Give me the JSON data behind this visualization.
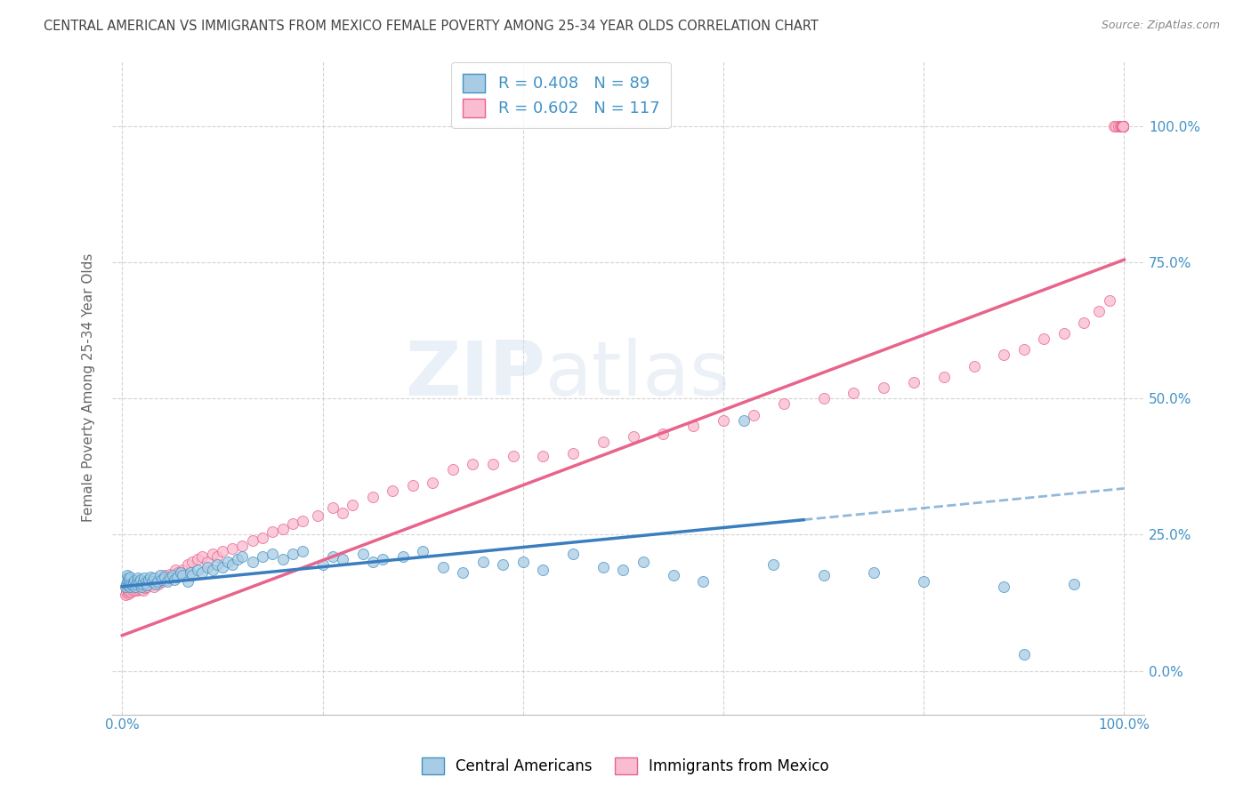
{
  "title": "CENTRAL AMERICAN VS IMMIGRANTS FROM MEXICO FEMALE POVERTY AMONG 25-34 YEAR OLDS CORRELATION CHART",
  "source": "Source: ZipAtlas.com",
  "ylabel": "Female Poverty Among 25-34 Year Olds",
  "watermark_top": "ZIP",
  "watermark_bottom": "atlas",
  "legend_line1": "R = 0.408   N = 89",
  "legend_line2": "R = 0.602   N = 117",
  "color_blue_fill": "#a8cce4",
  "color_blue_edge": "#4292c6",
  "color_pink_fill": "#f9bcd0",
  "color_pink_edge": "#e8648a",
  "color_blue_line": "#3a7ebf",
  "color_pink_line": "#e8648a",
  "background_color": "#ffffff",
  "grid_color": "#c8c8c8",
  "label_color": "#4292c6",
  "title_color": "#444444",
  "source_color": "#888888",
  "ylabel_color": "#666666",
  "blue_x": [
    0.003,
    0.004,
    0.005,
    0.005,
    0.006,
    0.006,
    0.007,
    0.007,
    0.008,
    0.008,
    0.009,
    0.01,
    0.011,
    0.012,
    0.013,
    0.014,
    0.015,
    0.016,
    0.017,
    0.018,
    0.019,
    0.02,
    0.021,
    0.022,
    0.024,
    0.025,
    0.026,
    0.028,
    0.03,
    0.032,
    0.033,
    0.035,
    0.038,
    0.04,
    0.042,
    0.045,
    0.048,
    0.05,
    0.052,
    0.055,
    0.058,
    0.06,
    0.065,
    0.068,
    0.07,
    0.075,
    0.08,
    0.085,
    0.09,
    0.095,
    0.1,
    0.105,
    0.11,
    0.115,
    0.12,
    0.13,
    0.14,
    0.15,
    0.16,
    0.17,
    0.18,
    0.2,
    0.21,
    0.22,
    0.24,
    0.25,
    0.26,
    0.28,
    0.3,
    0.32,
    0.34,
    0.36,
    0.38,
    0.4,
    0.42,
    0.45,
    0.48,
    0.5,
    0.52,
    0.55,
    0.58,
    0.62,
    0.65,
    0.7,
    0.75,
    0.8,
    0.88,
    0.9,
    0.95
  ],
  "blue_y": [
    0.155,
    0.16,
    0.165,
    0.175,
    0.158,
    0.17,
    0.162,
    0.168,
    0.155,
    0.172,
    0.16,
    0.158,
    0.163,
    0.166,
    0.155,
    0.16,
    0.165,
    0.17,
    0.162,
    0.168,
    0.155,
    0.16,
    0.165,
    0.17,
    0.162,
    0.158,
    0.168,
    0.172,
    0.165,
    0.17,
    0.16,
    0.165,
    0.175,
    0.168,
    0.172,
    0.165,
    0.17,
    0.175,
    0.168,
    0.172,
    0.18,
    0.175,
    0.165,
    0.18,
    0.175,
    0.185,
    0.18,
    0.19,
    0.185,
    0.195,
    0.19,
    0.2,
    0.195,
    0.205,
    0.21,
    0.2,
    0.21,
    0.215,
    0.205,
    0.215,
    0.22,
    0.195,
    0.21,
    0.205,
    0.215,
    0.2,
    0.205,
    0.21,
    0.22,
    0.19,
    0.18,
    0.2,
    0.195,
    0.2,
    0.185,
    0.215,
    0.19,
    0.185,
    0.2,
    0.175,
    0.165,
    0.46,
    0.195,
    0.175,
    0.18,
    0.165,
    0.155,
    0.03,
    0.16
  ],
  "pink_x": [
    0.003,
    0.004,
    0.005,
    0.005,
    0.006,
    0.006,
    0.007,
    0.008,
    0.009,
    0.01,
    0.011,
    0.012,
    0.013,
    0.014,
    0.015,
    0.016,
    0.017,
    0.018,
    0.019,
    0.02,
    0.021,
    0.022,
    0.023,
    0.024,
    0.025,
    0.026,
    0.028,
    0.03,
    0.032,
    0.034,
    0.036,
    0.038,
    0.04,
    0.042,
    0.045,
    0.048,
    0.05,
    0.053,
    0.056,
    0.06,
    0.065,
    0.07,
    0.075,
    0.08,
    0.085,
    0.09,
    0.095,
    0.1,
    0.11,
    0.12,
    0.13,
    0.14,
    0.15,
    0.16,
    0.17,
    0.18,
    0.195,
    0.21,
    0.22,
    0.23,
    0.25,
    0.27,
    0.29,
    0.31,
    0.33,
    0.35,
    0.37,
    0.39,
    0.42,
    0.45,
    0.48,
    0.51,
    0.54,
    0.57,
    0.6,
    0.63,
    0.66,
    0.7,
    0.73,
    0.76,
    0.79,
    0.82,
    0.85,
    0.88,
    0.9,
    0.92,
    0.94,
    0.96,
    0.975,
    0.985,
    0.99,
    0.992,
    0.994,
    0.996,
    0.997,
    0.998,
    0.999,
    0.999,
    0.999,
    0.999,
    0.999,
    0.999,
    0.999,
    0.999,
    0.999,
    0.999,
    0.999,
    0.999,
    0.999,
    0.999,
    0.999,
    0.999,
    0.999,
    0.999,
    0.999,
    0.999,
    0.999
  ],
  "pink_y": [
    0.14,
    0.145,
    0.15,
    0.155,
    0.142,
    0.148,
    0.145,
    0.15,
    0.145,
    0.148,
    0.152,
    0.148,
    0.152,
    0.155,
    0.148,
    0.155,
    0.15,
    0.156,
    0.15,
    0.155,
    0.148,
    0.155,
    0.152,
    0.158,
    0.155,
    0.16,
    0.158,
    0.162,
    0.155,
    0.165,
    0.16,
    0.17,
    0.165,
    0.175,
    0.168,
    0.178,
    0.172,
    0.185,
    0.18,
    0.185,
    0.195,
    0.2,
    0.205,
    0.21,
    0.2,
    0.215,
    0.21,
    0.22,
    0.225,
    0.23,
    0.24,
    0.245,
    0.255,
    0.26,
    0.27,
    0.275,
    0.285,
    0.3,
    0.29,
    0.305,
    0.32,
    0.33,
    0.34,
    0.345,
    0.37,
    0.38,
    0.38,
    0.395,
    0.395,
    0.4,
    0.42,
    0.43,
    0.435,
    0.45,
    0.46,
    0.47,
    0.49,
    0.5,
    0.51,
    0.52,
    0.53,
    0.54,
    0.56,
    0.58,
    0.59,
    0.61,
    0.62,
    0.64,
    0.66,
    0.68,
    1.0,
    1.0,
    1.0,
    1.0,
    1.0,
    1.0,
    1.0,
    1.0,
    1.0,
    1.0,
    1.0,
    1.0,
    1.0,
    1.0,
    1.0,
    1.0,
    1.0,
    1.0,
    1.0,
    1.0,
    1.0,
    1.0,
    1.0,
    1.0,
    1.0,
    1.0,
    1.0
  ],
  "blue_line_x0": 0.0,
  "blue_line_x_solid_end": 0.68,
  "blue_line_x1": 1.0,
  "blue_line_y0": 0.155,
  "blue_line_y1": 0.335,
  "pink_line_x0": 0.0,
  "pink_line_x1": 1.0,
  "pink_line_y0": 0.065,
  "pink_line_y1": 0.755,
  "xlim": [
    -0.01,
    1.02
  ],
  "ylim": [
    -0.08,
    1.12
  ],
  "x_ticks": [
    0.0,
    0.2,
    0.4,
    0.6,
    0.8,
    1.0
  ],
  "y_ticks": [
    0.0,
    0.25,
    0.5,
    0.75,
    1.0
  ]
}
